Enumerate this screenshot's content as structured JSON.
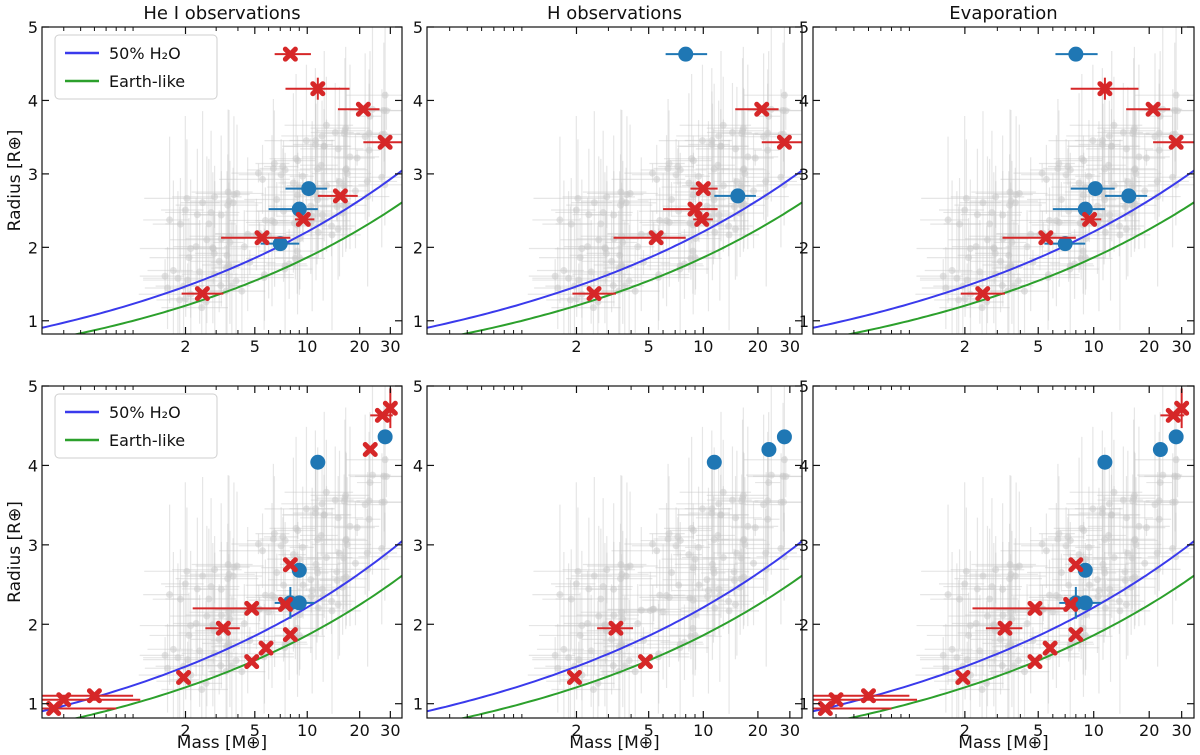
{
  "figure": {
    "column_titles": [
      "He I observations",
      "H observations",
      "Evaporation"
    ],
    "ylabel": "Radius [R⊕]",
    "xlabel": "Mass [M⊕]",
    "legend_labels": [
      "50% H₂O",
      "Earth-like"
    ],
    "xtick_labels": [
      "2",
      "5",
      "10",
      "20",
      "30"
    ],
    "ytick_labels": [
      "1",
      "2",
      "3",
      "4",
      "5"
    ],
    "colors": {
      "detection": "#d62728",
      "non_detection": "#1f77b4",
      "water": "#3a3aec",
      "earth": "#2ca02c",
      "background": "#c8c8c8"
    }
  },
  "chart_data": [
    {
      "type": "scatter",
      "panel": "top-left",
      "title": "He I observations",
      "xscale": "log",
      "xlim": [
        0.3,
        35
      ],
      "ylim": [
        0.82,
        5.0
      ],
      "legend": "upper-left",
      "red_points": [
        {
          "x": 8,
          "y": 4.63,
          "xerr": [
            1.5,
            2.5
          ]
        },
        {
          "x": 11.5,
          "y": 4.16,
          "xerr": [
            4,
            6
          ],
          "yerr": 0.15
        },
        {
          "x": 21,
          "y": 3.88,
          "xerr": [
            6,
            5
          ]
        },
        {
          "x": 28,
          "y": 3.43,
          "xerr": [
            7,
            8
          ]
        },
        {
          "x": 15.5,
          "y": 2.7,
          "xerr": [
            4,
            4
          ]
        },
        {
          "x": 9.5,
          "y": 2.38,
          "xerr": [
            1,
            1.5
          ]
        },
        {
          "x": 5.5,
          "y": 2.13,
          "xerr": [
            2.3,
            2.5
          ]
        },
        {
          "x": 2.5,
          "y": 1.37,
          "xerr": [
            0.6,
            0.8
          ]
        }
      ],
      "blue_points": [
        {
          "x": 10.2,
          "y": 2.8,
          "xerr": [
            2.7,
            2.8
          ]
        },
        {
          "x": 9,
          "y": 2.52,
          "xerr": [
            3,
            2.5
          ]
        },
        {
          "x": 7,
          "y": 2.05,
          "xerr": [
            1.6,
            2
          ]
        }
      ]
    },
    {
      "type": "scatter",
      "panel": "top-middle",
      "title": "H observations",
      "xscale": "log",
      "xlim": [
        0.3,
        35
      ],
      "ylim": [
        0.82,
        5.0
      ],
      "red_points": [
        {
          "x": 21,
          "y": 3.88,
          "xerr": [
            6,
            5
          ]
        },
        {
          "x": 28,
          "y": 3.43,
          "xerr": [
            7,
            8
          ]
        },
        {
          "x": 10,
          "y": 2.8,
          "xerr": [
            1.5,
            2
          ]
        },
        {
          "x": 9,
          "y": 2.52,
          "xerr": [
            3,
            3
          ]
        },
        {
          "x": 9.8,
          "y": 2.38,
          "xerr": [
            1,
            1.5
          ]
        },
        {
          "x": 5.5,
          "y": 2.13,
          "xerr": [
            2.3,
            2.5
          ]
        },
        {
          "x": 2.5,
          "y": 1.37,
          "xerr": [
            0.6,
            0.8
          ]
        }
      ],
      "blue_points": [
        {
          "x": 8,
          "y": 4.63,
          "xerr": [
            1.8,
            2.5
          ]
        },
        {
          "x": 15.5,
          "y": 2.7,
          "xerr": [
            4,
            4
          ]
        }
      ]
    },
    {
      "type": "scatter",
      "panel": "top-right",
      "title": "Evaporation",
      "xscale": "log",
      "xlim": [
        0.3,
        35
      ],
      "ylim": [
        0.82,
        5.0
      ],
      "red_points": [
        {
          "x": 11.5,
          "y": 4.16,
          "xerr": [
            4,
            6
          ],
          "yerr": 0.15
        },
        {
          "x": 21,
          "y": 3.88,
          "xerr": [
            6,
            5
          ]
        },
        {
          "x": 28,
          "y": 3.43,
          "xerr": [
            7,
            8
          ]
        },
        {
          "x": 9.5,
          "y": 2.38,
          "xerr": [
            1,
            1.5
          ]
        },
        {
          "x": 5.5,
          "y": 2.13,
          "xerr": [
            2.3,
            2.5
          ]
        },
        {
          "x": 2.5,
          "y": 1.37,
          "xerr": [
            0.6,
            0.8
          ]
        }
      ],
      "blue_points": [
        {
          "x": 8,
          "y": 4.63,
          "xerr": [
            1.8,
            2.5
          ]
        },
        {
          "x": 10.2,
          "y": 2.8,
          "xerr": [
            2.7,
            2.8
          ]
        },
        {
          "x": 15.5,
          "y": 2.7,
          "xerr": [
            4,
            4
          ]
        },
        {
          "x": 9,
          "y": 2.52,
          "xerr": [
            3,
            2.5
          ]
        },
        {
          "x": 7,
          "y": 2.05,
          "xerr": [
            1.6,
            2
          ]
        }
      ]
    },
    {
      "type": "scatter",
      "panel": "bottom-left",
      "title": "",
      "xscale": "log",
      "xlim": [
        0.3,
        35
      ],
      "ylim": [
        0.82,
        5.0
      ],
      "legend": "upper-left",
      "red_points": [
        {
          "x": 27,
          "y": 4.63,
          "xerr": [
            4,
            4
          ]
        },
        {
          "x": 30,
          "y": 4.72,
          "yerr": 0.25
        },
        {
          "x": 23,
          "y": 4.2
        },
        {
          "x": 8,
          "y": 2.75
        },
        {
          "x": 4.8,
          "y": 2.2,
          "xerr": [
            2.6,
            2.5
          ]
        },
        {
          "x": 7.5,
          "y": 2.25,
          "xerr": [
            0.5,
            0.5
          ]
        },
        {
          "x": 3.3,
          "y": 1.95,
          "xerr": [
            0.7,
            0.8
          ]
        },
        {
          "x": 8,
          "y": 1.87
        },
        {
          "x": 5.8,
          "y": 1.7
        },
        {
          "x": 4.8,
          "y": 1.53
        },
        {
          "x": 1.95,
          "y": 1.33
        },
        {
          "x": 0.6,
          "y": 1.1,
          "xerr": [
            0.3,
            0.4
          ]
        },
        {
          "x": 0.4,
          "y": 1.05,
          "xerr": [
            0.1,
            0.7
          ]
        },
        {
          "x": 0.35,
          "y": 0.94,
          "xerr": [
            0.05,
            0.45
          ]
        }
      ],
      "blue_points": [
        {
          "x": 28,
          "y": 4.36
        },
        {
          "x": 11.5,
          "y": 4.04
        },
        {
          "x": 9,
          "y": 2.68
        },
        {
          "x": 8,
          "y": 2.27,
          "xerr": [
            1.5,
            2
          ],
          "yerr": 0.2
        },
        {
          "x": 9,
          "y": 2.27,
          "xerr": [
            1,
            2
          ]
        }
      ]
    },
    {
      "type": "scatter",
      "panel": "bottom-middle",
      "title": "",
      "xscale": "log",
      "xlim": [
        0.3,
        35
      ],
      "ylim": [
        0.82,
        5.0
      ],
      "red_points": [
        {
          "x": 3.3,
          "y": 1.95,
          "xerr": [
            0.7,
            0.8
          ]
        },
        {
          "x": 4.8,
          "y": 1.53
        },
        {
          "x": 1.95,
          "y": 1.33
        }
      ],
      "blue_points": [
        {
          "x": 28,
          "y": 4.36
        },
        {
          "x": 23,
          "y": 4.2
        },
        {
          "x": 11.5,
          "y": 4.04
        }
      ]
    },
    {
      "type": "scatter",
      "panel": "bottom-right",
      "title": "",
      "xscale": "log",
      "xlim": [
        0.3,
        35
      ],
      "ylim": [
        0.82,
        5.0
      ],
      "red_points": [
        {
          "x": 27,
          "y": 4.63,
          "xerr": [
            4,
            4
          ]
        },
        {
          "x": 30,
          "y": 4.72,
          "yerr": 0.25
        },
        {
          "x": 8,
          "y": 2.75
        },
        {
          "x": 4.8,
          "y": 2.2,
          "xerr": [
            2.6,
            2.5
          ]
        },
        {
          "x": 7.5,
          "y": 2.25,
          "xerr": [
            0.5,
            0.5
          ]
        },
        {
          "x": 3.3,
          "y": 1.95,
          "xerr": [
            0.7,
            0.8
          ]
        },
        {
          "x": 8,
          "y": 1.87
        },
        {
          "x": 5.8,
          "y": 1.7
        },
        {
          "x": 4.8,
          "y": 1.53
        },
        {
          "x": 1.95,
          "y": 1.33
        },
        {
          "x": 0.6,
          "y": 1.1,
          "xerr": [
            0.3,
            0.4
          ]
        },
        {
          "x": 0.4,
          "y": 1.05,
          "xerr": [
            0.1,
            0.7
          ]
        },
        {
          "x": 0.35,
          "y": 0.94,
          "xerr": [
            0.05,
            0.45
          ]
        }
      ],
      "blue_points": [
        {
          "x": 28,
          "y": 4.36
        },
        {
          "x": 23,
          "y": 4.2
        },
        {
          "x": 11.5,
          "y": 4.04
        },
        {
          "x": 9,
          "y": 2.68
        },
        {
          "x": 8,
          "y": 2.27,
          "xerr": [
            1.5,
            2
          ],
          "yerr": 0.2
        },
        {
          "x": 9,
          "y": 2.27,
          "xerr": [
            1,
            2
          ]
        }
      ]
    }
  ]
}
